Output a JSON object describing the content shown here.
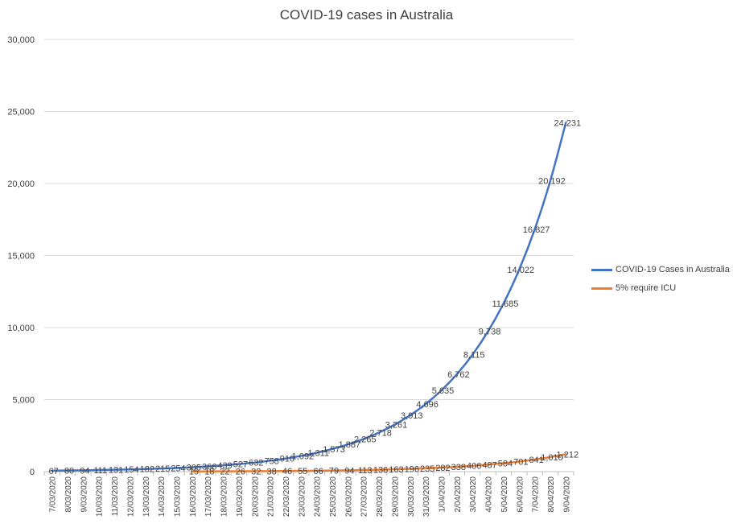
{
  "colors": {
    "cases": "#4472C4",
    "icu": "#ED7D31",
    "grid": "#d9d9d9",
    "text": "#404040"
  },
  "chart_data": {
    "type": "line",
    "title": "COVID-19 cases in Australia",
    "xlabel": "",
    "ylabel": "",
    "ylim": [
      0,
      30000
    ],
    "yticks": [
      "0",
      "5,000",
      "10,000",
      "15,000",
      "20,000",
      "25,000",
      "30,000"
    ],
    "grid": true,
    "legend_position": "right",
    "categories": [
      "7/03/2020",
      "8/03/2020",
      "9/03/2020",
      "10/03/2020",
      "11/03/2020",
      "12/03/2020",
      "13/03/2020",
      "14/03/2020",
      "15/03/2020",
      "16/03/2020",
      "17/03/2020",
      "18/03/2020",
      "19/03/2020",
      "20/03/2020",
      "21/03/2020",
      "22/03/2020",
      "23/03/2020",
      "24/03/2020",
      "25/03/2020",
      "26/03/2020",
      "27/03/2020",
      "28/03/2020",
      "29/03/2020",
      "30/03/2020",
      "31/03/2020",
      "1/04/2020",
      "2/04/2020",
      "3/04/2020",
      "4/04/2020",
      "5/04/2020",
      "6/04/2020",
      "7/04/2020",
      "8/04/2020",
      "9/04/2020"
    ],
    "series": [
      {
        "name": "COVID-19 Cases in Australia",
        "values": [
          67,
          80,
          94,
          111,
          131,
          154,
          182,
          215,
          254,
          305,
          366,
          439,
          527,
          632,
          758,
          910,
          1092,
          1311,
          1573,
          1887,
          2265,
          2718,
          3261,
          3913,
          4696,
          5635,
          6762,
          8115,
          9738,
          11685,
          14022,
          16827,
          20192,
          24231
        ],
        "labels": [
          "67",
          "80",
          "94",
          "111",
          "131",
          "154",
          "182",
          "215",
          "254",
          "305",
          "366",
          "439",
          "527",
          "632",
          "758",
          "910",
          "1,092",
          "1,311",
          "1,573",
          "1,887",
          "2,265",
          "2,718",
          "3,261",
          "3,913",
          "4,696",
          "5,635",
          "6,762",
          "8,115",
          "9,738",
          "11,685",
          "14,022",
          "16,827",
          "20,192",
          "24,231"
        ]
      },
      {
        "name": "5% require ICU",
        "values": [
          null,
          null,
          null,
          null,
          null,
          null,
          null,
          null,
          null,
          15,
          18,
          22,
          26,
          32,
          38,
          46,
          55,
          66,
          79,
          94,
          113,
          136,
          163,
          196,
          235,
          282,
          338,
          406,
          487,
          584,
          701,
          841,
          1010,
          1212
        ],
        "labels": [
          "",
          "",
          "",
          "",
          "",
          "",
          "",
          "",
          "",
          "15",
          "18",
          "22",
          "26",
          "32",
          "38",
          "46",
          "55",
          "66",
          "79",
          "94",
          "113",
          "136",
          "163",
          "196",
          "235",
          "282",
          "338",
          "406",
          "487",
          "584",
          "701",
          "841",
          "1,010",
          "1,212"
        ]
      }
    ]
  }
}
